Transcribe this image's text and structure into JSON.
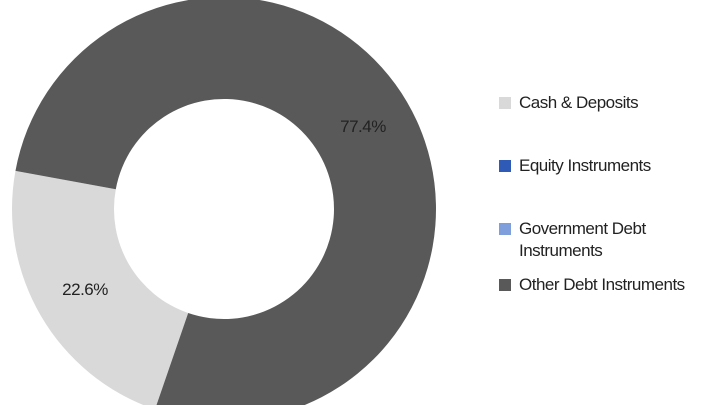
{
  "chart_data": {
    "type": "donut",
    "categories": [
      "Cash & Deposits",
      "Equity Instruments",
      "Government Debt Instruments",
      "Other Debt Instruments"
    ],
    "values": [
      22.6,
      0,
      0,
      77.4
    ],
    "value_labels": [
      "22.6%",
      null,
      null,
      "77.4%"
    ],
    "colors": [
      "#d9d9d9",
      "#2f5bb7",
      "#7f9fdc",
      "#595959"
    ],
    "legend": "right"
  }
}
